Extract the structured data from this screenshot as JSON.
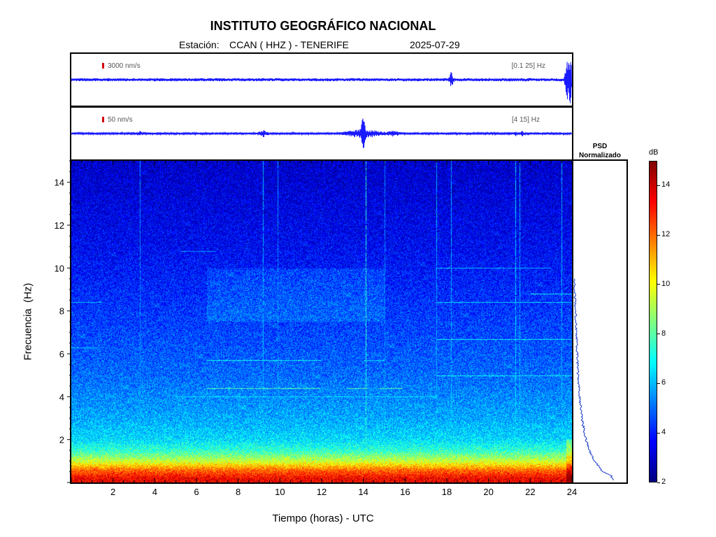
{
  "header": {
    "title": "INSTITUTO GEOGRÁFICO NACIONAL",
    "station_label": "Estación:",
    "station": "CCAN ( HHZ ) - TENERIFE",
    "date": "2025-07-29"
  },
  "colors": {
    "trace": "#1a1aff",
    "scale_bar": "#d40000",
    "psd_line": "#1a3cc8",
    "colormap": [
      "#00007f",
      "#0000ff",
      "#007fff",
      "#00ffff",
      "#7fff7f",
      "#ffff00",
      "#ff7f00",
      "#ff0000",
      "#7f0000"
    ]
  },
  "traces": [
    {
      "scale_label": "3000 nm/s",
      "band_label": "[0.1 25] Hz"
    },
    {
      "scale_label": "50 nm/s",
      "band_label": "[4 15] Hz"
    }
  ],
  "psd": {
    "title_line1": "PSD",
    "title_line2": "Normalizado"
  },
  "colorbar": {
    "unit": "dB",
    "ticks": [
      "2",
      "4",
      "6",
      "8",
      "10",
      "12",
      "14"
    ]
  },
  "chart_data": {
    "type": "heatmap",
    "title": "INSTITUTO GEOGRÁFICO NACIONAL",
    "xlabel": "Tiempo (horas) - UTC",
    "ylabel": "Frecuencia  (Hz)",
    "xlim": [
      0,
      24
    ],
    "ylim": [
      0,
      15
    ],
    "x_ticks": [
      "2",
      "4",
      "6",
      "8",
      "10",
      "12",
      "14",
      "16",
      "18",
      "20",
      "22",
      "24"
    ],
    "y_ticks": [
      "2",
      "4",
      "6",
      "8",
      "10",
      "12",
      "14"
    ],
    "colorbar_range_db": [
      2,
      15
    ],
    "background_db_by_frequency": [
      {
        "f": 0.2,
        "db": 13.5
      },
      {
        "f": 0.6,
        "db": 12
      },
      {
        "f": 1.0,
        "db": 9.5
      },
      {
        "f": 1.5,
        "db": 7.5
      },
      {
        "f": 2.0,
        "db": 6.5
      },
      {
        "f": 3.0,
        "db": 5.8
      },
      {
        "f": 5.0,
        "db": 5.0
      },
      {
        "f": 8.0,
        "db": 4.3
      },
      {
        "f": 11.0,
        "db": 3.6
      },
      {
        "f": 15.0,
        "db": 3.0
      }
    ],
    "horizontal_lines": [
      {
        "f": 4.0,
        "t0": 5.0,
        "t1": 17.5,
        "db": 6.5
      },
      {
        "f": 4.4,
        "t0": 6.5,
        "t1": 11.9,
        "db": 8.0
      },
      {
        "f": 4.4,
        "t0": 13.2,
        "t1": 14.2,
        "db": 8.0
      },
      {
        "f": 4.4,
        "t0": 14.7,
        "t1": 15.9,
        "db": 8.0
      },
      {
        "f": 5.0,
        "t0": 17.5,
        "t1": 24.0,
        "db": 7.0
      },
      {
        "f": 5.7,
        "t0": 6.5,
        "t1": 12.0,
        "db": 7.0
      },
      {
        "f": 5.7,
        "t0": 14.0,
        "t1": 15.0,
        "db": 6.5
      },
      {
        "f": 6.3,
        "t0": 0.0,
        "t1": 1.4,
        "db": 6.0
      },
      {
        "f": 6.7,
        "t0": 17.5,
        "t1": 24.0,
        "db": 7.0
      },
      {
        "f": 8.4,
        "t0": 0.0,
        "t1": 1.5,
        "db": 6.0
      },
      {
        "f": 8.4,
        "t0": 17.5,
        "t1": 24.0,
        "db": 6.5
      },
      {
        "f": 8.8,
        "t0": 22.0,
        "t1": 24.0,
        "db": 7.0
      },
      {
        "f": 10.0,
        "t0": 17.5,
        "t1": 23.0,
        "db": 6.0
      },
      {
        "f": 10.8,
        "t0": 5.2,
        "t1": 6.9,
        "db": 5.5
      }
    ],
    "vertical_lines": [
      {
        "t": 3.3,
        "db": 5.5
      },
      {
        "t": 9.2,
        "db": 6.0
      },
      {
        "t": 9.9,
        "db": 5.5
      },
      {
        "t": 14.1,
        "db": 7.5
      },
      {
        "t": 15.0,
        "db": 5.5
      },
      {
        "t": 17.5,
        "db": 6.0
      },
      {
        "t": 18.2,
        "db": 6.0
      },
      {
        "t": 21.3,
        "db": 6.5
      },
      {
        "t": 21.5,
        "db": 6.0
      },
      {
        "t": 23.5,
        "db": 6.0
      }
    ],
    "psd_normalized": [
      {
        "f": 0.1,
        "v": 0.95
      },
      {
        "f": 0.3,
        "v": 0.9
      },
      {
        "f": 0.5,
        "v": 0.7
      },
      {
        "f": 1.0,
        "v": 0.5
      },
      {
        "f": 1.5,
        "v": 0.38
      },
      {
        "f": 2.0,
        "v": 0.3
      },
      {
        "f": 3.0,
        "v": 0.2
      },
      {
        "f": 4.0,
        "v": 0.15
      },
      {
        "f": 5.0,
        "v": 0.11
      },
      {
        "f": 6.0,
        "v": 0.09
      },
      {
        "f": 7.0,
        "v": 0.07
      },
      {
        "f": 8.0,
        "v": 0.05
      },
      {
        "f": 9.0,
        "v": 0.03
      },
      {
        "f": 9.5,
        "v": 0.02
      }
    ]
  }
}
